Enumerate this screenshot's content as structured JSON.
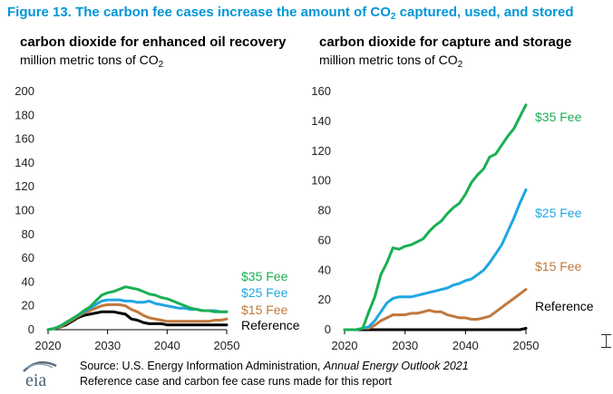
{
  "figure_title": "Figure 13. The carbon fee cases increase the amount of CO₂ captured, used, and stored",
  "source": {
    "prefix": "Source: U.S. Energy Information Administration, ",
    "publication": "Annual Energy Outlook 2021",
    "note": "Reference case and carbon fee case runs made for this report"
  },
  "logo": {
    "text": "eia"
  },
  "icons": {
    "cursor": "text-cursor-icon",
    "logo": "eia-logo-icon"
  },
  "colors": {
    "title": "#0096d7",
    "fee35": "#1aaf54",
    "fee25": "#1ea7e1",
    "fee15": "#c0783c",
    "reference": "#000000"
  },
  "chart_data": [
    {
      "type": "line",
      "title": "carbon dioxide for enhanced oil recovery",
      "ylabel": "million metric tons of CO₂",
      "xlim": [
        2020,
        2050
      ],
      "ylim": [
        0,
        200
      ],
      "xticks": [
        2020,
        2030,
        2040,
        2050
      ],
      "yticks": [
        0,
        20,
        40,
        60,
        80,
        100,
        120,
        140,
        160,
        180,
        200
      ],
      "grid": false,
      "legend": "right-end-labels",
      "x": [
        2020,
        2021,
        2022,
        2023,
        2024,
        2025,
        2026,
        2027,
        2028,
        2029,
        2030,
        2031,
        2032,
        2033,
        2034,
        2035,
        2036,
        2037,
        2038,
        2039,
        2040,
        2041,
        2042,
        2043,
        2044,
        2045,
        2046,
        2047,
        2048,
        2049,
        2050
      ],
      "series": [
        {
          "name": "$35 Fee",
          "color": "#1aaf54",
          "values": [
            0,
            1,
            3,
            6,
            9,
            12,
            16,
            19,
            24,
            29,
            31,
            32,
            34,
            36,
            35,
            34,
            32,
            30,
            29,
            27,
            26,
            24,
            22,
            20,
            18,
            17,
            16,
            16,
            15,
            15,
            15
          ]
        },
        {
          "name": "$25 Fee",
          "color": "#1ea7e1",
          "values": [
            0,
            1,
            3,
            6,
            9,
            12,
            15,
            18,
            21,
            24,
            25,
            25,
            25,
            24,
            24,
            23,
            23,
            24,
            22,
            21,
            20,
            19,
            18,
            18,
            17,
            17,
            16,
            16,
            16,
            15,
            15
          ]
        },
        {
          "name": "$15 Fee",
          "color": "#c0783c",
          "values": [
            0,
            1,
            2,
            5,
            8,
            11,
            14,
            16,
            18,
            20,
            21,
            21,
            21,
            20,
            17,
            15,
            12,
            10,
            9,
            8,
            7,
            7,
            7,
            7,
            7,
            7,
            7,
            7,
            8,
            8,
            9
          ]
        },
        {
          "name": "Reference",
          "color": "#000000",
          "values": [
            0,
            1,
            2,
            4,
            7,
            10,
            12,
            13,
            14,
            15,
            15,
            15,
            14,
            13,
            9,
            8,
            6,
            5,
            5,
            5,
            4,
            4,
            4,
            4,
            4,
            4,
            4,
            4,
            4,
            4,
            4
          ]
        }
      ]
    },
    {
      "type": "line",
      "title": "carbon dioxide for capture and storage",
      "ylabel": "million metric tons of CO₂",
      "xlim": [
        2020,
        2050
      ],
      "ylim": [
        0,
        160
      ],
      "xticks": [
        2020,
        2030,
        2040,
        2050
      ],
      "yticks": [
        0,
        20,
        40,
        60,
        80,
        100,
        120,
        140,
        160
      ],
      "grid": false,
      "legend": "right-end-labels",
      "x": [
        2020,
        2021,
        2022,
        2023,
        2024,
        2025,
        2026,
        2027,
        2028,
        2029,
        2030,
        2031,
        2032,
        2033,
        2034,
        2035,
        2036,
        2037,
        2038,
        2039,
        2040,
        2041,
        2042,
        2043,
        2044,
        2045,
        2046,
        2047,
        2048,
        2049,
        2050
      ],
      "series": [
        {
          "name": "$35 Fee",
          "color": "#1aaf54",
          "values": [
            0,
            0,
            0,
            1,
            12,
            22,
            37,
            45,
            55,
            54,
            56,
            57,
            59,
            61,
            66,
            70,
            73,
            78,
            82,
            85,
            91,
            99,
            104,
            108,
            116,
            118,
            124,
            130,
            135,
            143,
            151
          ]
        },
        {
          "name": "$25 Fee",
          "color": "#1ea7e1",
          "values": [
            0,
            0,
            0,
            1,
            2,
            6,
            12,
            18,
            21,
            22,
            22,
            22,
            23,
            24,
            25,
            26,
            27,
            28,
            30,
            31,
            33,
            34,
            37,
            40,
            45,
            51,
            57,
            66,
            75,
            85,
            94
          ]
        },
        {
          "name": "$15 Fee",
          "color": "#c0783c",
          "values": [
            0,
            0,
            0,
            1,
            1,
            3,
            6,
            8,
            10,
            10,
            10,
            11,
            11,
            12,
            13,
            12,
            12,
            10,
            9,
            8,
            8,
            7,
            7,
            8,
            9,
            12,
            15,
            18,
            21,
            24,
            27
          ]
        },
        {
          "name": "Reference",
          "color": "#000000",
          "values": [
            0,
            0,
            0,
            0,
            0,
            0,
            0,
            0,
            0,
            0,
            0,
            0,
            0,
            0,
            0,
            0,
            0,
            0,
            0,
            0,
            0,
            0,
            0,
            0,
            0,
            0,
            0,
            0,
            0,
            0,
            1
          ]
        }
      ]
    }
  ]
}
